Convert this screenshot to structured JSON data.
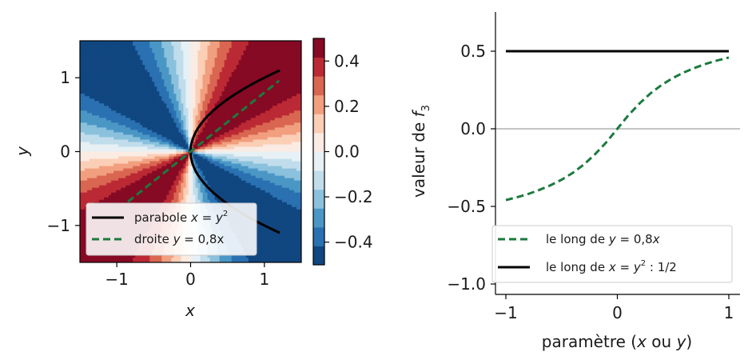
{
  "chart_data": [
    {
      "type": "heatmap",
      "xlabel": "x",
      "ylabel": "y",
      "xlim": [
        -1.5,
        1.5
      ],
      "ylim": [
        -1.5,
        1.5
      ],
      "xticks": [
        {
          "v": -1,
          "label": "−1"
        },
        {
          "v": 0,
          "label": "0"
        },
        {
          "v": 1,
          "label": "1"
        }
      ],
      "yticks": [
        {
          "v": -1,
          "label": "−1"
        },
        {
          "v": 0,
          "label": "0"
        },
        {
          "v": 1,
          "label": "1"
        }
      ],
      "field": "xy/(x^2+y^2)",
      "colormap": "RdBu_r",
      "levels": 12,
      "colorbar": {
        "range": [
          -0.5,
          0.5
        ],
        "ticks": [
          {
            "v": -0.4,
            "label": "−0.4"
          },
          {
            "v": -0.2,
            "label": "−0.2"
          },
          {
            "v": 0.0,
            "label": "0.0"
          },
          {
            "v": 0.2,
            "label": "0.2"
          },
          {
            "v": 0.4,
            "label": "0.4"
          }
        ]
      },
      "curves": [
        {
          "label": "parabole",
          "math_lhs": "x",
          "math_rhs": "y",
          "math_sup": "2",
          "kind": "parabola",
          "color": "#000000",
          "dash": false,
          "y_range": [
            -1.1,
            1.1
          ]
        },
        {
          "label": "droite",
          "math_lhs": "y",
          "math_rhs": "0,8x",
          "kind": "line",
          "slope": 0.8,
          "color": "#1b7a3e",
          "dash": true,
          "x_range": [
            -0.85,
            1.2
          ]
        }
      ],
      "legend": "lower-left",
      "grid": false
    },
    {
      "type": "line",
      "xlabel": "paramètre (x ou y)",
      "ylabel": "valeur de f",
      "ylabel_sub": "3",
      "xlim": [
        -1.1,
        1.1
      ],
      "ylim": [
        -1.05,
        0.75
      ],
      "xticks": [
        {
          "v": -1,
          "label": "−1"
        },
        {
          "v": 0,
          "label": "0"
        },
        {
          "v": 1,
          "label": "1"
        }
      ],
      "yticks": [
        {
          "v": 0.5,
          "label": "0.5"
        },
        {
          "v": 0.0,
          "label": "0.0"
        },
        {
          "v": -0.5,
          "label": "−0.5"
        },
        {
          "v": -1.0,
          "label": "−1.0"
        }
      ],
      "hline": 0,
      "series": [
        {
          "label": "le long de",
          "math": "y = 0,8x",
          "color": "#1b7a3e",
          "dash": true,
          "x": [
            -1.0,
            -0.9,
            -0.8,
            -0.7,
            -0.6,
            -0.5,
            -0.4,
            -0.3,
            -0.2,
            -0.1,
            0.0,
            0.1,
            0.2,
            0.3,
            0.4,
            0.5,
            0.6,
            0.7,
            0.8,
            0.9,
            1.0
          ],
          "y": [
            -0.459,
            -0.441,
            -0.42,
            -0.394,
            -0.364,
            -0.328,
            -0.284,
            -0.23,
            -0.164,
            -0.088,
            0.0,
            0.088,
            0.164,
            0.23,
            0.284,
            0.328,
            0.364,
            0.394,
            0.42,
            0.441,
            0.459
          ]
        },
        {
          "label": "le long de",
          "math": "x = y",
          "math_sup": "2",
          "suffix": " : 1/2",
          "color": "#000000",
          "dash": false,
          "x": [
            -1.0,
            1.0
          ],
          "y": [
            0.5,
            0.5
          ]
        }
      ],
      "legend": "lower-right",
      "grid": false
    }
  ]
}
